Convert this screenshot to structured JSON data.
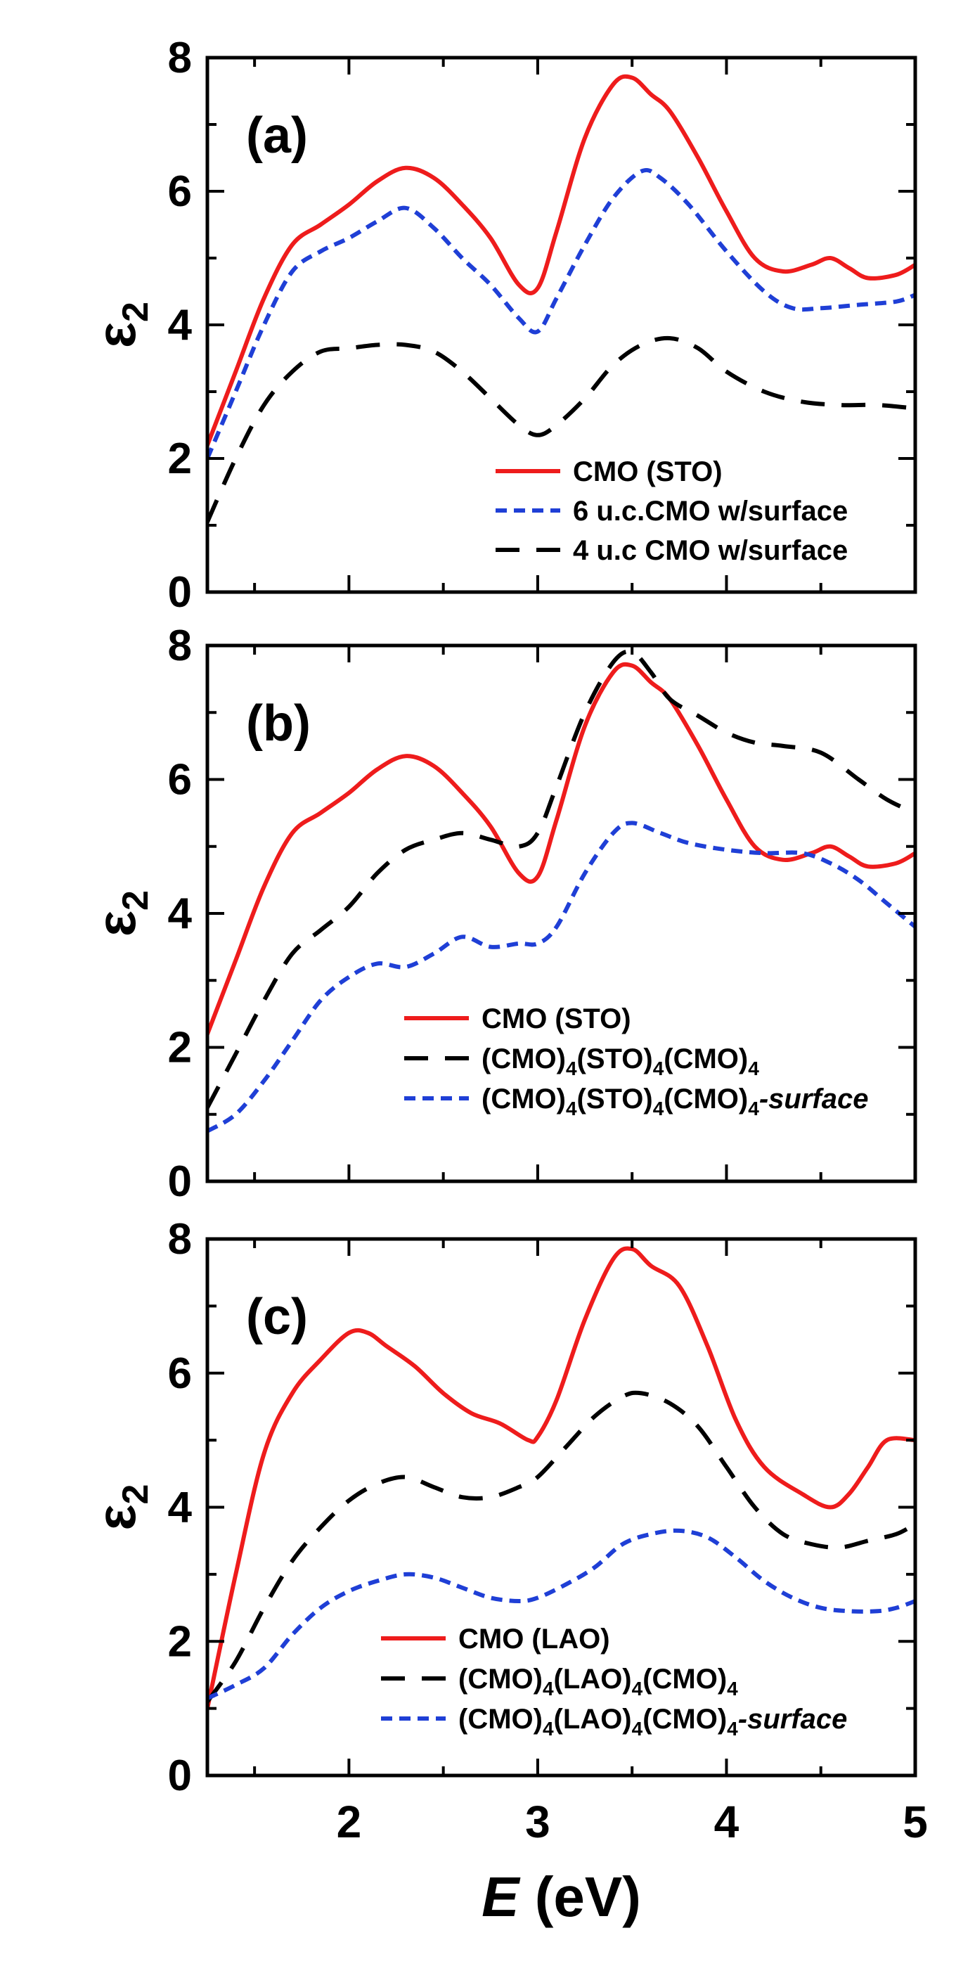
{
  "colors": {
    "red": "#ee1c1c",
    "blue": "#1f3fd6",
    "black": "#000000"
  },
  "chart_data": [
    {
      "type": "line",
      "panel_label": "(a)",
      "ylabel": "ε",
      "ylabel_sub": "2",
      "xlim": [
        1.25,
        5
      ],
      "ylim": [
        0,
        8
      ],
      "yticks": [
        "0",
        "2",
        "4",
        "6",
        "8"
      ],
      "legend_position": "bottom-right",
      "series": [
        {
          "name": "CMO (STO)",
          "color": "#ee1c1c",
          "dash": "solid",
          "x": [
            1.25,
            1.4,
            1.55,
            1.7,
            1.85,
            2.0,
            2.15,
            2.3,
            2.45,
            2.6,
            2.75,
            2.9,
            3.0,
            3.1,
            3.25,
            3.4,
            3.5,
            3.6,
            3.7,
            3.85,
            4.0,
            4.15,
            4.3,
            4.45,
            4.55,
            4.65,
            4.75,
            4.9,
            5.0
          ],
          "y": [
            2.2,
            3.3,
            4.4,
            5.2,
            5.5,
            5.8,
            6.15,
            6.35,
            6.2,
            5.8,
            5.3,
            4.6,
            4.55,
            5.4,
            6.8,
            7.6,
            7.7,
            7.45,
            7.2,
            6.5,
            5.7,
            5.0,
            4.8,
            4.9,
            5.0,
            4.85,
            4.7,
            4.75,
            4.9
          ]
        },
        {
          "name": "6 u.c.CMO w/surface",
          "color": "#1f3fd6",
          "dash": "dot",
          "x": [
            1.25,
            1.4,
            1.55,
            1.7,
            1.85,
            2.0,
            2.15,
            2.3,
            2.45,
            2.6,
            2.75,
            2.9,
            3.0,
            3.1,
            3.25,
            3.4,
            3.55,
            3.65,
            3.8,
            4.0,
            4.2,
            4.35,
            4.5,
            4.7,
            4.9,
            5.0
          ],
          "y": [
            2.0,
            3.0,
            4.0,
            4.8,
            5.1,
            5.3,
            5.55,
            5.75,
            5.45,
            5.0,
            4.6,
            4.1,
            3.9,
            4.4,
            5.2,
            5.9,
            6.3,
            6.2,
            5.8,
            5.1,
            4.5,
            4.25,
            4.25,
            4.3,
            4.35,
            4.45
          ]
        },
        {
          "name": "4 u.c CMO w/surface",
          "color": "#000000",
          "dash": "dash",
          "x": [
            1.25,
            1.4,
            1.55,
            1.7,
            1.85,
            2.0,
            2.15,
            2.3,
            2.45,
            2.6,
            2.75,
            2.9,
            3.0,
            3.1,
            3.25,
            3.4,
            3.55,
            3.7,
            3.85,
            4.0,
            4.2,
            4.4,
            4.6,
            4.8,
            5.0
          ],
          "y": [
            1.05,
            2.0,
            2.8,
            3.3,
            3.6,
            3.65,
            3.7,
            3.7,
            3.6,
            3.3,
            2.9,
            2.5,
            2.35,
            2.5,
            2.9,
            3.4,
            3.7,
            3.8,
            3.65,
            3.3,
            3.0,
            2.85,
            2.8,
            2.8,
            2.75
          ]
        }
      ]
    },
    {
      "type": "line",
      "panel_label": "(b)",
      "ylabel": "ε",
      "ylabel_sub": "2",
      "xlim": [
        1.25,
        5
      ],
      "ylim": [
        0,
        8
      ],
      "yticks": [
        "0",
        "2",
        "4",
        "6",
        "8"
      ],
      "legend_position": "bottom-right",
      "series": [
        {
          "name": "CMO (STO)",
          "color": "#ee1c1c",
          "dash": "solid",
          "x": [
            1.25,
            1.4,
            1.55,
            1.7,
            1.85,
            2.0,
            2.15,
            2.3,
            2.45,
            2.6,
            2.75,
            2.9,
            3.0,
            3.1,
            3.25,
            3.4,
            3.5,
            3.6,
            3.7,
            3.85,
            4.0,
            4.15,
            4.3,
            4.45,
            4.55,
            4.65,
            4.75,
            4.9,
            5.0
          ],
          "y": [
            2.2,
            3.3,
            4.4,
            5.2,
            5.5,
            5.8,
            6.15,
            6.35,
            6.2,
            5.8,
            5.3,
            4.6,
            4.55,
            5.4,
            6.8,
            7.6,
            7.7,
            7.45,
            7.2,
            6.5,
            5.7,
            5.0,
            4.8,
            4.9,
            5.0,
            4.85,
            4.7,
            4.75,
            4.9
          ]
        },
        {
          "name": "(CMO)4(STO)4(CMO)4",
          "label_parts": [
            "(CMO)",
            "4",
            "(STO)",
            "4",
            "(CMO)",
            "4"
          ],
          "color": "#000000",
          "dash": "dash",
          "x": [
            1.25,
            1.4,
            1.55,
            1.7,
            1.85,
            2.0,
            2.15,
            2.3,
            2.45,
            2.6,
            2.75,
            2.9,
            3.0,
            3.1,
            3.25,
            3.4,
            3.5,
            3.6,
            3.7,
            3.85,
            4.0,
            4.15,
            4.3,
            4.5,
            4.7,
            4.85,
            5.0
          ],
          "y": [
            1.1,
            1.9,
            2.7,
            3.4,
            3.75,
            4.1,
            4.6,
            4.95,
            5.1,
            5.2,
            5.1,
            5.0,
            5.2,
            5.9,
            7.0,
            7.75,
            7.9,
            7.6,
            7.2,
            6.95,
            6.7,
            6.55,
            6.5,
            6.4,
            6.0,
            5.7,
            5.5
          ]
        },
        {
          "name": "(CMO)4(STO)4(CMO)4-surface",
          "label_parts": [
            "(CMO)",
            "4",
            "(STO)",
            "4",
            "(CMO)",
            "4",
            "-surface"
          ],
          "color": "#1f3fd6",
          "dash": "dot",
          "x": [
            1.25,
            1.4,
            1.55,
            1.7,
            1.85,
            2.0,
            2.15,
            2.3,
            2.45,
            2.6,
            2.75,
            2.9,
            3.0,
            3.1,
            3.25,
            3.4,
            3.5,
            3.65,
            3.8,
            4.0,
            4.2,
            4.4,
            4.55,
            4.7,
            4.85,
            5.0
          ],
          "y": [
            0.75,
            1.0,
            1.5,
            2.1,
            2.7,
            3.05,
            3.25,
            3.2,
            3.4,
            3.65,
            3.5,
            3.55,
            3.55,
            3.8,
            4.6,
            5.2,
            5.35,
            5.2,
            5.05,
            4.95,
            4.9,
            4.9,
            4.75,
            4.5,
            4.15,
            3.8
          ]
        }
      ]
    },
    {
      "type": "line",
      "panel_label": "(c)",
      "ylabel": "ε",
      "ylabel_sub": "2",
      "xlabel_italic": "E",
      "xlabel_rest": " (eV)",
      "xlim": [
        1.25,
        5
      ],
      "ylim": [
        0,
        8
      ],
      "xticks": [
        "2",
        "3",
        "4",
        "5"
      ],
      "yticks": [
        "0",
        "2",
        "4",
        "6",
        "8"
      ],
      "legend_position": "bottom-right",
      "series": [
        {
          "name": "CMO (LAO)",
          "color": "#ee1c1c",
          "dash": "solid",
          "x": [
            1.25,
            1.4,
            1.55,
            1.7,
            1.85,
            2.0,
            2.1,
            2.2,
            2.35,
            2.5,
            2.65,
            2.8,
            2.95,
            3.0,
            3.1,
            3.25,
            3.4,
            3.5,
            3.6,
            3.75,
            3.9,
            4.05,
            4.2,
            4.4,
            4.55,
            4.65,
            4.75,
            4.85,
            5.0
          ],
          "y": [
            1.0,
            3.0,
            4.8,
            5.7,
            6.2,
            6.6,
            6.6,
            6.4,
            6.1,
            5.7,
            5.4,
            5.25,
            5.0,
            5.05,
            5.6,
            6.8,
            7.7,
            7.85,
            7.6,
            7.3,
            6.4,
            5.3,
            4.6,
            4.2,
            4.0,
            4.2,
            4.6,
            5.0,
            5.0
          ]
        },
        {
          "name": "(CMO)4(LAO)4(CMO)4",
          "label_parts": [
            "(CMO)",
            "4",
            "(LAO)",
            "4",
            "(CMO)",
            "4"
          ],
          "color": "#000000",
          "dash": "dash",
          "x": [
            1.25,
            1.4,
            1.55,
            1.7,
            1.85,
            2.0,
            2.15,
            2.3,
            2.45,
            2.6,
            2.75,
            2.9,
            3.0,
            3.15,
            3.3,
            3.45,
            3.55,
            3.7,
            3.85,
            4.0,
            4.15,
            4.3,
            4.45,
            4.6,
            4.75,
            4.9,
            5.0
          ],
          "y": [
            1.1,
            1.7,
            2.5,
            3.2,
            3.7,
            4.1,
            4.35,
            4.45,
            4.3,
            4.15,
            4.15,
            4.3,
            4.45,
            4.9,
            5.35,
            5.65,
            5.7,
            5.55,
            5.2,
            4.6,
            4.0,
            3.6,
            3.45,
            3.4,
            3.5,
            3.6,
            3.75
          ]
        },
        {
          "name": "(CMO)4(LAO)4(CMO)4-surface",
          "label_parts": [
            "(CMO)",
            "4",
            "(LAO)",
            "4",
            "(CMO)",
            "4",
            "-surface"
          ],
          "color": "#1f3fd6",
          "dash": "dot",
          "x": [
            1.25,
            1.4,
            1.55,
            1.7,
            1.85,
            2.0,
            2.15,
            2.3,
            2.45,
            2.6,
            2.75,
            2.9,
            3.0,
            3.15,
            3.3,
            3.45,
            3.6,
            3.75,
            3.9,
            4.05,
            4.2,
            4.35,
            4.5,
            4.65,
            4.8,
            4.9,
            5.0
          ],
          "y": [
            1.15,
            1.35,
            1.6,
            2.1,
            2.5,
            2.75,
            2.9,
            3.0,
            2.95,
            2.8,
            2.65,
            2.6,
            2.65,
            2.85,
            3.1,
            3.45,
            3.6,
            3.65,
            3.55,
            3.25,
            2.9,
            2.65,
            2.5,
            2.45,
            2.45,
            2.5,
            2.6
          ]
        }
      ]
    }
  ]
}
